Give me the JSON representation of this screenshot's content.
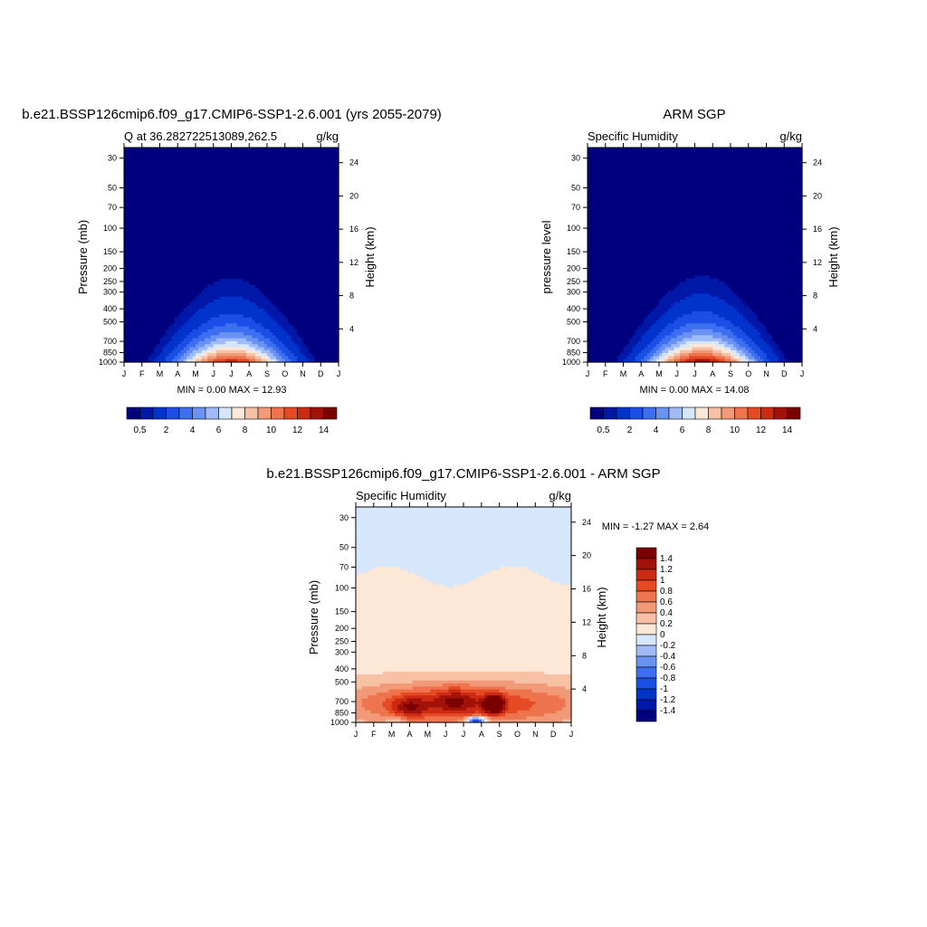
{
  "months": [
    "J",
    "F",
    "M",
    "A",
    "M",
    "J",
    "J",
    "A",
    "S",
    "O",
    "N",
    "D",
    "J"
  ],
  "pressure_ticks": [
    30,
    50,
    70,
    100,
    150,
    200,
    250,
    300,
    400,
    500,
    700,
    850,
    1000
  ],
  "height_ticks": [
    24,
    20,
    16,
    12,
    8,
    4
  ],
  "panels": [
    {
      "id": "model",
      "title": "b.e21.BSSP126cmip6.f09_g17.CMIP6-SSP1-2.6.001 (yrs 2055-2079)",
      "left_string": "Q at 36.282722513089,262.5",
      "right_string": "g/kg",
      "ylabel": "Pressure (mb)",
      "ylabel_right": "Height (km)",
      "stats": "MIN =   0.00 MAX =  12.93",
      "min": 0.0,
      "max": 12.93,
      "peak_month_index": 6.0
    },
    {
      "id": "obs",
      "title": "ARM SGP",
      "left_string": "Specific Humidity",
      "right_string": "g/kg",
      "ylabel": "pressure level",
      "ylabel_right": "Height (km)",
      "stats": "MIN =   0.00 MAX =  14.08",
      "min": 0.0,
      "max": 14.08,
      "peak_month_index": 6.4
    },
    {
      "id": "diff",
      "title": "b.e21.BSSP126cmip6.f09_g17.CMIP6-SSP1-2.6.001 - ARM SGP",
      "left_string": "Specific Humidity",
      "right_string": "g/kg",
      "ylabel": "Pressure (mb)",
      "ylabel_right": "Height (km)",
      "stats": "MIN = -1.27 MAX =   2.64",
      "min": -1.27,
      "max": 2.64
    }
  ],
  "seq_colorbar": {
    "colors": [
      "#00007f",
      "#0018a8",
      "#0033cc",
      "#1a4fe6",
      "#3d6ff0",
      "#6a92f3",
      "#a0bcf8",
      "#d6e6fb",
      "#fde8d8",
      "#f8c0a4",
      "#f29a78",
      "#ee744e",
      "#e64a24",
      "#cc2a12",
      "#a31208",
      "#7a0000"
    ],
    "tick_labels": [
      "0.5",
      "2",
      "4",
      "6",
      "8",
      "10",
      "12",
      "14"
    ]
  },
  "diff_colorbar": {
    "colors": [
      "#00007f",
      "#0018a8",
      "#0033cc",
      "#1a4fe6",
      "#3d6ff0",
      "#6a92f3",
      "#a0bcf8",
      "#d6e6fb",
      "#fde8d8",
      "#f8c0a4",
      "#f29a78",
      "#ee744e",
      "#e64a24",
      "#cc2a12",
      "#a31208",
      "#7a0000"
    ],
    "tick_labels": [
      "1.4",
      "1.2",
      "1",
      "0.8",
      "0.6",
      "0.4",
      "0.2",
      "0",
      "-0.2",
      "-0.4",
      "-0.6",
      "-0.8",
      "-1",
      "-1.2",
      "-1.4"
    ]
  },
  "chart_data": [
    {
      "type": "heatmap",
      "title": "b.e21.BSSP126cmip6.f09_g17.CMIP6-SSP1-2.6.001 (yrs 2055-2079)",
      "subtitle": "Q at 36.282722513089,262.5",
      "units": "g/kg",
      "x": [
        "J",
        "F",
        "M",
        "A",
        "M",
        "J",
        "J",
        "A",
        "S",
        "O",
        "N",
        "D",
        "J"
      ],
      "y": [
        1000,
        850,
        700,
        500,
        400,
        300,
        250,
        200,
        150,
        100,
        70,
        50,
        30
      ],
      "ylabel": "Pressure (mb)",
      "ylabel_right": "Height (km)",
      "ylog": true,
      "ylim": [
        1000,
        25
      ],
      "min": 0.0,
      "max": 12.93
    },
    {
      "type": "heatmap",
      "title": "ARM SGP",
      "subtitle": "Specific Humidity",
      "units": "g/kg",
      "x": [
        "J",
        "F",
        "M",
        "A",
        "M",
        "J",
        "J",
        "A",
        "S",
        "O",
        "N",
        "D",
        "J"
      ],
      "y": [
        1000,
        850,
        700,
        500,
        400,
        300,
        250,
        200,
        150,
        100,
        70,
        50,
        30
      ],
      "ylabel": "pressure level",
      "ylabel_right": "Height (km)",
      "ylog": true,
      "ylim": [
        1000,
        25
      ],
      "min": 0.0,
      "max": 14.08
    },
    {
      "type": "heatmap",
      "title": "b.e21.BSSP126cmip6.f09_g17.CMIP6-SSP1-2.6.001 - ARM SGP",
      "subtitle": "Specific Humidity",
      "units": "g/kg",
      "x": [
        "J",
        "F",
        "M",
        "A",
        "M",
        "J",
        "J",
        "A",
        "S",
        "O",
        "N",
        "D",
        "J"
      ],
      "y": [
        1000,
        850,
        700,
        500,
        400,
        300,
        250,
        200,
        150,
        100,
        70,
        50,
        30
      ],
      "ylabel": "Pressure (mb)",
      "ylabel_right": "Height (km)",
      "ylog": true,
      "ylim": [
        1000,
        25
      ],
      "min": -1.27,
      "max": 2.64
    }
  ]
}
